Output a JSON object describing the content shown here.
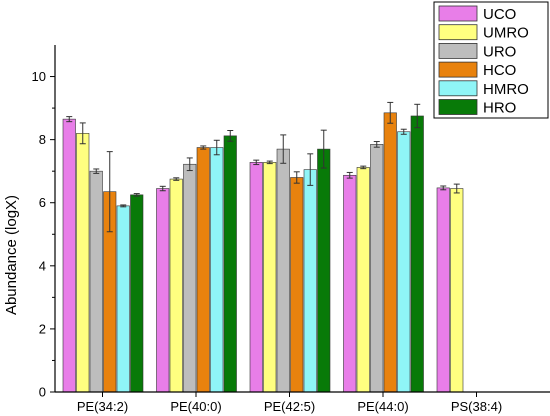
{
  "chart_data": {
    "type": "bar",
    "ylabel": "Abundance (logX)",
    "xlabel": "",
    "ylim": [
      0,
      11
    ],
    "yticks": [
      0,
      2,
      4,
      6,
      8,
      10
    ],
    "grid": false,
    "legend_position": "top-right",
    "categories": [
      "PE(34:2)",
      "PE(40:0)",
      "PE(42:5)",
      "PE(44:0)",
      "PS(38:4)"
    ],
    "series": [
      {
        "name": "UCO",
        "color": "#e87ee8",
        "values": [
          8.65,
          6.45,
          7.28,
          6.87,
          6.47
        ],
        "errors": [
          0.08,
          0.07,
          0.07,
          0.09,
          0.06
        ]
      },
      {
        "name": "UMRO",
        "color": "#ffff80",
        "values": [
          8.2,
          6.75,
          7.28,
          7.12,
          6.45
        ],
        "errors": [
          0.33,
          0.04,
          0.04,
          0.04,
          0.14
        ]
      },
      {
        "name": "URO",
        "color": "#bdbdbd",
        "values": [
          7.0,
          7.22,
          7.7,
          7.85,
          null
        ],
        "errors": [
          0.07,
          0.2,
          0.45,
          0.09,
          null
        ]
      },
      {
        "name": "HCO",
        "color": "#e8820e",
        "values": [
          6.35,
          7.75,
          6.8,
          8.85,
          null
        ],
        "errors": [
          1.27,
          0.05,
          0.18,
          0.33,
          null
        ]
      },
      {
        "name": "HMRO",
        "color": "#8ff5f7",
        "values": [
          5.9,
          7.75,
          7.05,
          8.25,
          null
        ],
        "errors": [
          0.03,
          0.23,
          0.5,
          0.08,
          null
        ]
      },
      {
        "name": "HRO",
        "color": "#087a08",
        "values": [
          6.25,
          8.12,
          7.7,
          8.75,
          null
        ],
        "errors": [
          0.04,
          0.17,
          0.6,
          0.37,
          null
        ]
      }
    ]
  }
}
